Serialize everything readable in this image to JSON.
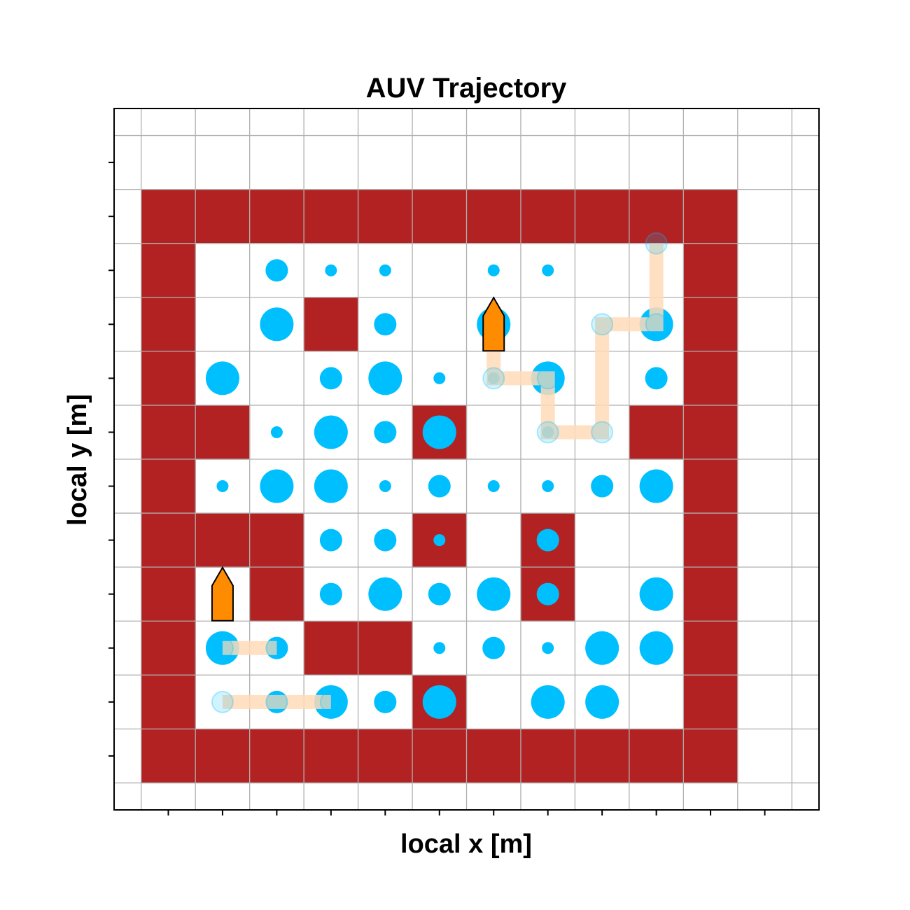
{
  "chart_data": {
    "type": "heatmap",
    "title": "AUV Trajectory",
    "xlabel": "local x [m]",
    "ylabel": "local y [m]",
    "xlim": [
      -1,
      12
    ],
    "ylim": [
      -1,
      12
    ],
    "grid": true,
    "tick_labels_shown": false,
    "colors": {
      "wall": "#b22222",
      "resource": "#00bfff",
      "trajectory": "#ffdab9",
      "vehicle": "#ff8c00",
      "grid": "#b0b0b0"
    },
    "walls": [
      [
        0,
        0
      ],
      [
        1,
        0
      ],
      [
        2,
        0
      ],
      [
        3,
        0
      ],
      [
        4,
        0
      ],
      [
        5,
        0
      ],
      [
        6,
        0
      ],
      [
        7,
        0
      ],
      [
        8,
        0
      ],
      [
        9,
        0
      ],
      [
        10,
        0
      ],
      [
        0,
        10
      ],
      [
        1,
        10
      ],
      [
        2,
        10
      ],
      [
        3,
        10
      ],
      [
        4,
        10
      ],
      [
        5,
        10
      ],
      [
        6,
        10
      ],
      [
        7,
        10
      ],
      [
        8,
        10
      ],
      [
        9,
        10
      ],
      [
        10,
        10
      ],
      [
        0,
        1
      ],
      [
        0,
        2
      ],
      [
        0,
        3
      ],
      [
        0,
        4
      ],
      [
        0,
        5
      ],
      [
        0,
        6
      ],
      [
        0,
        7
      ],
      [
        0,
        8
      ],
      [
        0,
        9
      ],
      [
        10,
        1
      ],
      [
        10,
        2
      ],
      [
        10,
        3
      ],
      [
        10,
        4
      ],
      [
        10,
        5
      ],
      [
        10,
        6
      ],
      [
        10,
        7
      ],
      [
        10,
        8
      ],
      [
        10,
        9
      ],
      [
        3,
        8
      ],
      [
        1,
        6
      ],
      [
        5,
        6
      ],
      [
        9,
        6
      ],
      [
        1,
        4
      ],
      [
        2,
        4
      ],
      [
        5,
        4
      ],
      [
        7,
        4
      ],
      [
        2,
        3
      ],
      [
        7,
        3
      ],
      [
        3,
        2
      ],
      [
        4,
        2
      ],
      [
        5,
        1
      ]
    ],
    "resources": [
      {
        "x": 2,
        "y": 9,
        "size": 2
      },
      {
        "x": 3,
        "y": 9,
        "size": 1
      },
      {
        "x": 4,
        "y": 9,
        "size": 1
      },
      {
        "x": 6,
        "y": 9,
        "size": 1
      },
      {
        "x": 7,
        "y": 9,
        "size": 1
      },
      {
        "x": 2,
        "y": 8,
        "size": 3
      },
      {
        "x": 4,
        "y": 8,
        "size": 2
      },
      {
        "x": 6,
        "y": 8,
        "size": 3
      },
      {
        "x": 9,
        "y": 8,
        "size": 3
      },
      {
        "x": 1,
        "y": 7,
        "size": 3
      },
      {
        "x": 3,
        "y": 7,
        "size": 2
      },
      {
        "x": 4,
        "y": 7,
        "size": 3
      },
      {
        "x": 5,
        "y": 7,
        "size": 1
      },
      {
        "x": 6,
        "y": 7,
        "size": 1
      },
      {
        "x": 7,
        "y": 7,
        "size": 3
      },
      {
        "x": 9,
        "y": 7,
        "size": 2
      },
      {
        "x": 2,
        "y": 6,
        "size": 1
      },
      {
        "x": 3,
        "y": 6,
        "size": 3
      },
      {
        "x": 4,
        "y": 6,
        "size": 2
      },
      {
        "x": 5,
        "y": 6,
        "size": 3
      },
      {
        "x": 7,
        "y": 6,
        "size": 1
      },
      {
        "x": 1,
        "y": 5,
        "size": 1
      },
      {
        "x": 2,
        "y": 5,
        "size": 3
      },
      {
        "x": 3,
        "y": 5,
        "size": 3
      },
      {
        "x": 4,
        "y": 5,
        "size": 1
      },
      {
        "x": 5,
        "y": 5,
        "size": 2
      },
      {
        "x": 6,
        "y": 5,
        "size": 1
      },
      {
        "x": 7,
        "y": 5,
        "size": 1
      },
      {
        "x": 8,
        "y": 5,
        "size": 2
      },
      {
        "x": 9,
        "y": 5,
        "size": 3
      },
      {
        "x": 3,
        "y": 4,
        "size": 2
      },
      {
        "x": 4,
        "y": 4,
        "size": 2
      },
      {
        "x": 5,
        "y": 4,
        "size": 1
      },
      {
        "x": 7,
        "y": 4,
        "size": 2
      },
      {
        "x": 3,
        "y": 3,
        "size": 2
      },
      {
        "x": 4,
        "y": 3,
        "size": 3
      },
      {
        "x": 5,
        "y": 3,
        "size": 2
      },
      {
        "x": 6,
        "y": 3,
        "size": 3
      },
      {
        "x": 7,
        "y": 3,
        "size": 2
      },
      {
        "x": 9,
        "y": 3,
        "size": 3
      },
      {
        "x": 1,
        "y": 2,
        "size": 3
      },
      {
        "x": 2,
        "y": 2,
        "size": 2
      },
      {
        "x": 5,
        "y": 2,
        "size": 1
      },
      {
        "x": 6,
        "y": 2,
        "size": 2
      },
      {
        "x": 7,
        "y": 2,
        "size": 1
      },
      {
        "x": 8,
        "y": 2,
        "size": 3
      },
      {
        "x": 9,
        "y": 2,
        "size": 3
      },
      {
        "x": 2,
        "y": 1,
        "size": 2
      },
      {
        "x": 3,
        "y": 1,
        "size": 3
      },
      {
        "x": 4,
        "y": 1,
        "size": 2
      },
      {
        "x": 5,
        "y": 1,
        "size": 3
      },
      {
        "x": 7,
        "y": 1,
        "size": 3
      },
      {
        "x": 8,
        "y": 1,
        "size": 3
      }
    ],
    "trajectories": [
      {
        "points": [
          [
            3,
            1
          ],
          [
            2,
            1
          ],
          [
            1,
            1
          ]
        ],
        "end": [
          1,
          3
        ]
      },
      {
        "points": [
          [
            2,
            2
          ],
          [
            1,
            2
          ]
        ],
        "end": [
          1,
          3
        ]
      },
      {
        "points": [
          [
            9,
            9.5
          ],
          [
            9,
            8
          ],
          [
            8,
            8
          ],
          [
            8,
            6
          ],
          [
            7,
            6
          ],
          [
            7,
            7
          ],
          [
            6,
            7
          ],
          [
            6,
            8
          ]
        ],
        "end": [
          6,
          8
        ]
      }
    ],
    "vehicles": [
      {
        "x": 1,
        "y": 3
      },
      {
        "x": 6,
        "y": 8
      }
    ]
  }
}
